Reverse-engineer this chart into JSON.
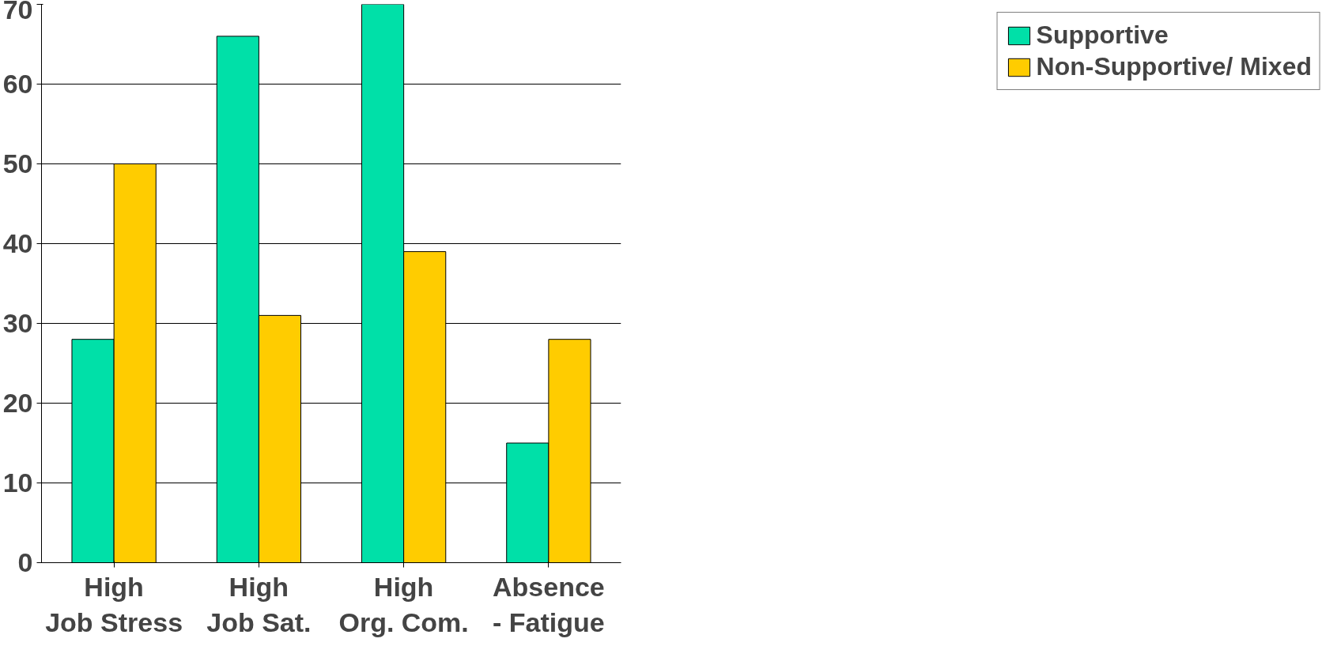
{
  "chart_data": {
    "type": "bar",
    "categories": [
      "High Job Stress",
      "High Job Sat.",
      "High Org. Com.",
      "Absence - Fatigue"
    ],
    "series": [
      {
        "name": "Supportive",
        "color": "#00e0a8",
        "values": [
          28,
          66,
          70,
          15
        ]
      },
      {
        "name": "Non-Supportive/ Mixed",
        "color": "#ffcc00",
        "values": [
          50,
          31,
          39,
          28
        ]
      }
    ],
    "ylim": [
      0,
      70
    ],
    "yticks": [
      0,
      10,
      20,
      30,
      40,
      50,
      60,
      70
    ],
    "grid": "y",
    "legend": "top right"
  }
}
